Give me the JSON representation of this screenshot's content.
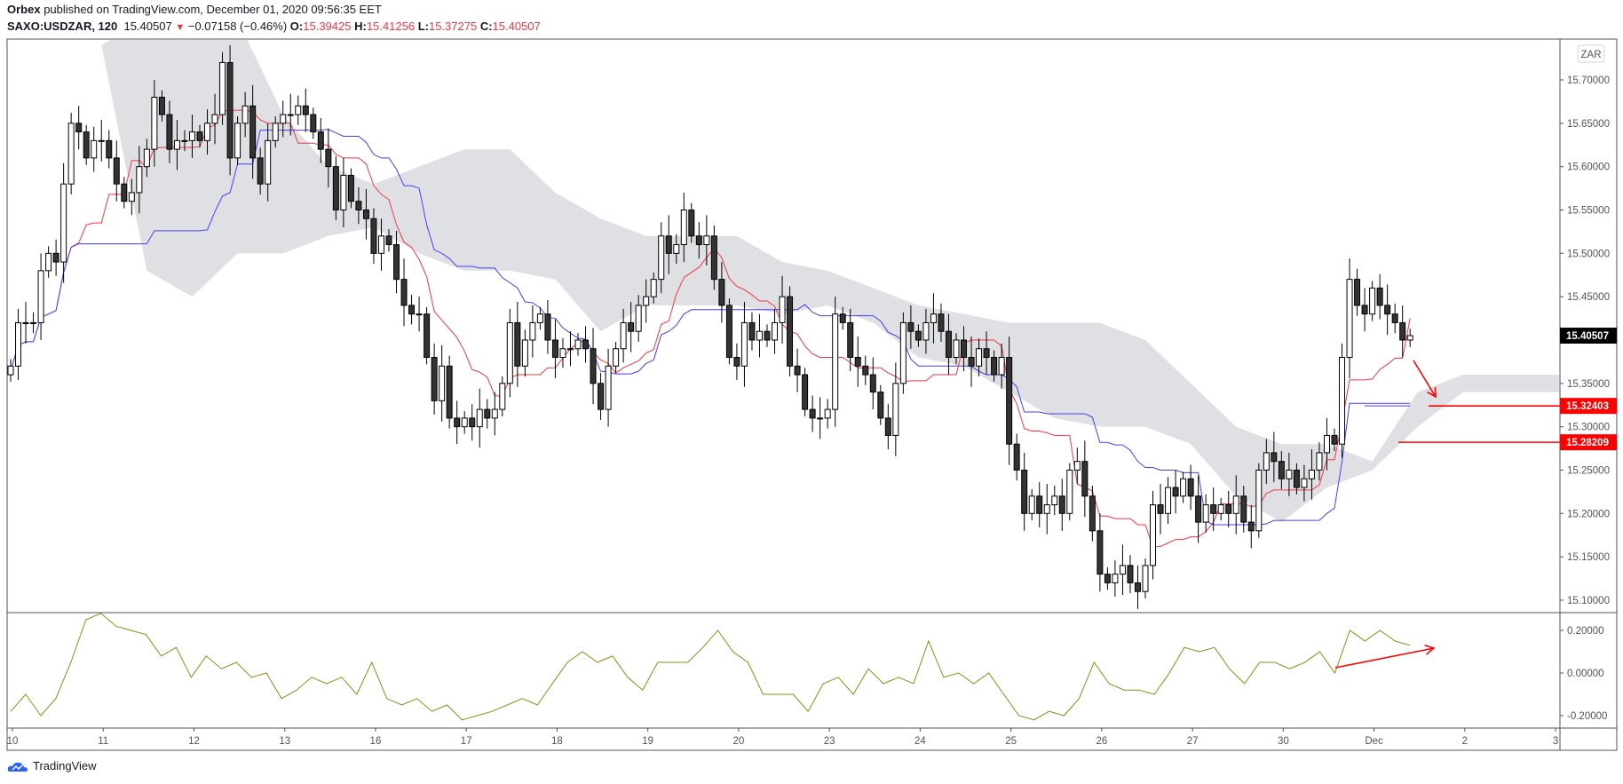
{
  "header": {
    "publisher": "Orbex",
    "published_text": "published on TradingView.com, December 01, 2020 09:56:35 EET",
    "symbol": "SAXO:USDZAR, 120",
    "last": "15.40507",
    "change": "−0.07158 (−0.46%)",
    "o_label": "O:",
    "o": "15.39425",
    "h_label": "H:",
    "h": "15.41256",
    "l_label": "L:",
    "l": "15.37275",
    "c_label": "C:",
    "c": "15.40507"
  },
  "currency_button": "ZAR",
  "logo": "TradingView",
  "colors": {
    "tenkan": "#f23645",
    "kijun": "#4a3cf5",
    "cloud": "#dfe0e4",
    "osc": "#8b8b1a",
    "annotation": "#ff0000",
    "up": "#ffffff",
    "down": "#333333"
  },
  "chart_data": {
    "type": "candlestick",
    "title": "SAXO:USDZAR, 120",
    "price_ticks": [
      "15.70000",
      "15.65000",
      "15.60000",
      "15.55000",
      "15.50000",
      "15.45000",
      "15.35000",
      "15.30000",
      "15.25000",
      "15.20000",
      "15.15000",
      "15.10000"
    ],
    "price_range": [
      15.08,
      15.77
    ],
    "osc_ticks": [
      "0.20000",
      "0.00000",
      "-0.20000"
    ],
    "osc_range": [
      -0.28,
      0.29
    ],
    "time_ticks": [
      {
        "bar": 0,
        "label": "10"
      },
      {
        "bar": 12,
        "label": "11"
      },
      {
        "bar": 24,
        "label": "12"
      },
      {
        "bar": 36,
        "label": "13"
      },
      {
        "bar": 48,
        "label": "16"
      },
      {
        "bar": 60,
        "label": "17"
      },
      {
        "bar": 72,
        "label": "18"
      },
      {
        "bar": 84,
        "label": "19"
      },
      {
        "bar": 96,
        "label": "20"
      },
      {
        "bar": 108,
        "label": "23"
      },
      {
        "bar": 120,
        "label": "24"
      },
      {
        "bar": 132,
        "label": "25"
      },
      {
        "bar": 144,
        "label": "26"
      },
      {
        "bar": 156,
        "label": "27"
      },
      {
        "bar": 168,
        "label": "30"
      },
      {
        "bar": 180,
        "label": "Dec"
      },
      {
        "bar": 192,
        "label": "2"
      },
      {
        "bar": 204,
        "label": "3"
      }
    ],
    "first_open": 15.36,
    "close": [
      15.37,
      15.42,
      15.42,
      15.42,
      15.48,
      15.5,
      15.49,
      15.58,
      15.65,
      15.64,
      15.61,
      15.63,
      15.63,
      15.61,
      15.58,
      15.56,
      15.57,
      15.6,
      15.62,
      15.68,
      15.66,
      15.62,
      15.63,
      15.63,
      15.64,
      15.63,
      15.65,
      15.66,
      15.72,
      15.61,
      15.65,
      15.67,
      15.61,
      15.58,
      15.63,
      15.65,
      15.66,
      15.66,
      15.67,
      15.66,
      15.64,
      15.62,
      15.6,
      15.55,
      15.59,
      15.56,
      15.55,
      15.54,
      15.5,
      15.52,
      15.51,
      15.47,
      15.44,
      15.43,
      15.43,
      15.38,
      15.33,
      15.37,
      15.31,
      15.3,
      15.31,
      15.3,
      15.32,
      15.31,
      15.32,
      15.35,
      15.42,
      15.37,
      15.4,
      15.42,
      15.43,
      15.4,
      15.38,
      15.39,
      15.39,
      15.4,
      15.39,
      15.35,
      15.32,
      15.37,
      15.39,
      15.42,
      15.41,
      15.44,
      15.45,
      15.47,
      15.52,
      15.5,
      15.51,
      15.55,
      15.52,
      15.51,
      15.52,
      15.47,
      15.44,
      15.38,
      15.37,
      15.42,
      15.4,
      15.41,
      15.4,
      15.42,
      15.45,
      15.37,
      15.36,
      15.32,
      15.31,
      15.31,
      15.32,
      15.43,
      15.42,
      15.38,
      15.37,
      15.36,
      15.34,
      15.31,
      15.29,
      15.35,
      15.42,
      15.41,
      15.4,
      15.42,
      15.43,
      15.41,
      15.38,
      15.4,
      15.38,
      15.37,
      15.39,
      15.38,
      15.36,
      15.38,
      15.28,
      15.25,
      15.2,
      15.22,
      15.2,
      15.21,
      15.22,
      15.2,
      15.25,
      15.26,
      15.22,
      15.18,
      15.13,
      15.12,
      15.13,
      15.14,
      15.12,
      15.11,
      15.14,
      15.21,
      15.2,
      15.23,
      15.22,
      15.24,
      15.22,
      15.19,
      15.21,
      15.2,
      15.21,
      15.2,
      15.22,
      15.19,
      15.18,
      15.25,
      15.27,
      15.26,
      15.24,
      15.25,
      15.23,
      15.24,
      15.25,
      15.27,
      15.29,
      15.28,
      15.38,
      15.47,
      15.44,
      15.43,
      15.46,
      15.44,
      15.43,
      15.42,
      15.4,
      15.40507
    ],
    "cloud": [
      [
        12,
        15.74,
        15.74
      ],
      [
        18,
        15.77,
        15.48
      ],
      [
        24,
        15.77,
        15.45
      ],
      [
        30,
        15.77,
        15.5
      ],
      [
        36,
        15.66,
        15.5
      ],
      [
        42,
        15.6,
        15.52
      ],
      [
        48,
        15.58,
        15.53
      ],
      [
        54,
        15.6,
        15.5
      ],
      [
        60,
        15.62,
        15.48
      ],
      [
        66,
        15.62,
        15.48
      ],
      [
        72,
        15.57,
        15.47
      ],
      [
        78,
        15.54,
        15.41
      ],
      [
        84,
        15.52,
        15.44
      ],
      [
        90,
        15.52,
        15.44
      ],
      [
        96,
        15.52,
        15.44
      ],
      [
        102,
        15.49,
        15.43
      ],
      [
        108,
        15.48,
        15.44
      ],
      [
        114,
        15.46,
        15.42
      ],
      [
        120,
        15.44,
        15.38
      ],
      [
        126,
        15.43,
        15.37
      ],
      [
        132,
        15.42,
        15.34
      ],
      [
        138,
        15.42,
        15.31
      ],
      [
        144,
        15.42,
        15.3
      ],
      [
        150,
        15.4,
        15.3
      ],
      [
        156,
        15.35,
        15.28
      ],
      [
        162,
        15.3,
        15.22
      ],
      [
        168,
        15.28,
        15.19
      ],
      [
        174,
        15.28,
        15.23
      ],
      [
        180,
        15.26,
        15.25
      ],
      [
        186,
        15.34,
        15.3
      ],
      [
        192,
        15.36,
        15.34
      ],
      [
        211,
        15.36,
        15.34
      ]
    ],
    "oscillator": [
      -0.18,
      -0.1,
      -0.2,
      -0.12,
      0.05,
      0.25,
      0.28,
      0.22,
      0.2,
      0.18,
      0.08,
      0.12,
      -0.02,
      0.08,
      0.02,
      0.05,
      -0.02,
      0.0,
      -0.12,
      -0.08,
      -0.02,
      -0.05,
      -0.02,
      -0.1,
      0.05,
      -0.12,
      -0.15,
      -0.12,
      -0.18,
      -0.15,
      -0.22,
      -0.2,
      -0.18,
      -0.15,
      -0.12,
      -0.15,
      -0.05,
      0.05,
      0.1,
      0.05,
      0.08,
      -0.02,
      -0.08,
      0.05,
      0.05,
      0.05,
      0.12,
      0.2,
      0.1,
      0.05,
      -0.1,
      -0.1,
      -0.1,
      -0.18,
      -0.05,
      -0.02,
      -0.1,
      0.02,
      -0.05,
      -0.02,
      -0.05,
      0.15,
      -0.02,
      0.0,
      -0.05,
      0.0,
      -0.1,
      -0.2,
      -0.22,
      -0.18,
      -0.2,
      -0.12,
      0.05,
      -0.05,
      -0.08,
      -0.08,
      -0.1,
      0.0,
      0.12,
      0.1,
      0.12,
      0.02,
      -0.05,
      0.05,
      0.05,
      0.02,
      0.05,
      0.1,
      0.0,
      0.2,
      0.15,
      0.2,
      0.15,
      0.13
    ],
    "kijun_projection": 15.32403,
    "price_labels": [
      {
        "value": 15.40507,
        "text": "15.40507",
        "kind": "last"
      },
      {
        "value": 15.32403,
        "text": "15.32403",
        "kind": "level"
      },
      {
        "value": 15.28209,
        "text": "15.28209",
        "kind": "level"
      }
    ]
  }
}
